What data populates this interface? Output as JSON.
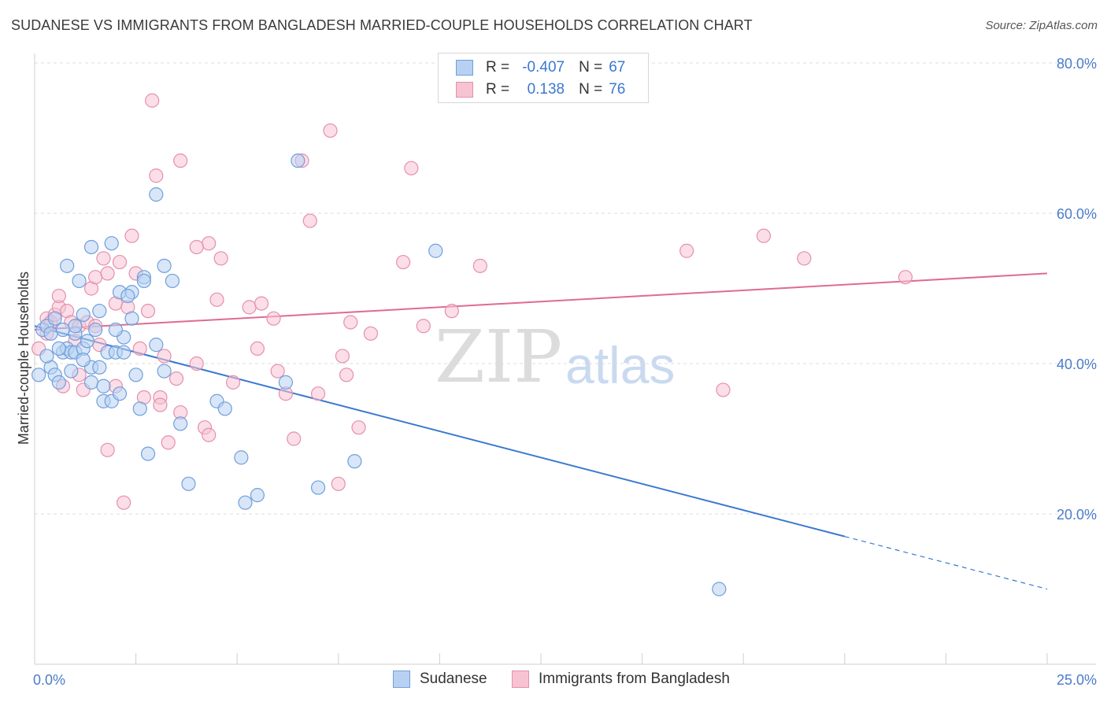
{
  "title": "SUDANESE VS IMMIGRANTS FROM BANGLADESH MARRIED-COUPLE HOUSEHOLDS CORRELATION CHART",
  "source": "Source: ZipAtlas.com",
  "watermark": {
    "zip": "ZIP",
    "atlas": "atlas"
  },
  "legend": {
    "r_label": "R =",
    "n_label": "N =",
    "series1": {
      "r": "-0.407",
      "n": "67"
    },
    "series2": {
      "r": "0.138",
      "n": "76"
    }
  },
  "bottom_legend": {
    "series1": "Sudanese",
    "series2": "Immigrants from Bangladesh"
  },
  "colors": {
    "blue_fill": "#b8d1f3",
    "blue_stroke": "#6f9fdc",
    "blue_line": "#3a78d0",
    "pink_fill": "#f7c3d3",
    "pink_stroke": "#e590ab",
    "pink_line": "#e06a93"
  },
  "chart_data": {
    "type": "scatter",
    "xlabel": "",
    "ylabel": "Married-couple Households",
    "xlim": [
      0,
      25
    ],
    "ylim": [
      0,
      80
    ],
    "x_tick_labels": {
      "min": "0.0%",
      "max": "25.0%"
    },
    "y_tick_labels": [
      "20.0%",
      "40.0%",
      "60.0%",
      "80.0%"
    ],
    "y_tick_values": [
      20,
      40,
      60,
      80
    ],
    "series": [
      {
        "name": "Sudanese",
        "r": -0.407,
        "n": 67,
        "trend": {
          "x0": 0,
          "y0": 45.0,
          "x1": 20.0,
          "y1": 17.0,
          "dash_to_x": 25,
          "dash_to_y": 10.0
        },
        "points": [
          [
            0.1,
            38.5
          ],
          [
            0.2,
            44.5
          ],
          [
            0.3,
            45.0
          ],
          [
            0.4,
            44.0
          ],
          [
            0.4,
            39.5
          ],
          [
            0.5,
            38.5
          ],
          [
            0.5,
            46.0
          ],
          [
            0.6,
            37.5
          ],
          [
            0.7,
            44.5
          ],
          [
            0.7,
            41.5
          ],
          [
            0.8,
            42.0
          ],
          [
            0.8,
            53.0
          ],
          [
            0.9,
            41.5
          ],
          [
            0.9,
            39.0
          ],
          [
            1.0,
            44.0
          ],
          [
            1.0,
            41.5
          ],
          [
            1.1,
            51.0
          ],
          [
            1.2,
            46.5
          ],
          [
            1.2,
            42.0
          ],
          [
            1.3,
            43.0
          ],
          [
            1.4,
            39.5
          ],
          [
            1.4,
            37.5
          ],
          [
            1.5,
            44.5
          ],
          [
            1.6,
            39.5
          ],
          [
            1.6,
            47.0
          ],
          [
            1.7,
            35.0
          ],
          [
            1.8,
            41.5
          ],
          [
            1.9,
            35.0
          ],
          [
            1.9,
            56.0
          ],
          [
            2.0,
            41.5
          ],
          [
            2.1,
            36.0
          ],
          [
            2.1,
            49.5
          ],
          [
            2.2,
            43.5
          ],
          [
            2.2,
            41.5
          ],
          [
            2.4,
            49.5
          ],
          [
            2.4,
            46.0
          ],
          [
            2.5,
            38.5
          ],
          [
            2.6,
            34.0
          ],
          [
            2.7,
            51.5
          ],
          [
            2.7,
            51.0
          ],
          [
            2.8,
            28.0
          ],
          [
            3.0,
            42.5
          ],
          [
            3.0,
            62.5
          ],
          [
            3.2,
            53.0
          ],
          [
            3.2,
            39.0
          ],
          [
            3.4,
            51.0
          ],
          [
            3.6,
            32.0
          ],
          [
            3.8,
            24.0
          ],
          [
            4.5,
            35.0
          ],
          [
            4.7,
            34.0
          ],
          [
            5.1,
            27.5
          ],
          [
            5.2,
            21.5
          ],
          [
            5.5,
            22.5
          ],
          [
            6.2,
            37.5
          ],
          [
            6.5,
            67.0
          ],
          [
            7.0,
            23.5
          ],
          [
            7.9,
            27.0
          ],
          [
            9.9,
            55.0
          ],
          [
            16.9,
            10.0
          ],
          [
            1.4,
            55.5
          ],
          [
            1.0,
            45.0
          ],
          [
            1.7,
            37.0
          ],
          [
            0.6,
            42.0
          ],
          [
            2.3,
            49.0
          ],
          [
            0.3,
            41.0
          ],
          [
            1.2,
            40.5
          ],
          [
            2.0,
            44.5
          ]
        ]
      },
      {
        "name": "Immigrants from Bangladesh",
        "r": 0.138,
        "n": 76,
        "trend": {
          "x0": 0,
          "y0": 44.5,
          "x1": 25,
          "y1": 52.0
        },
        "points": [
          [
            0.1,
            42.0
          ],
          [
            0.3,
            44.0
          ],
          [
            0.3,
            46.0
          ],
          [
            0.4,
            45.5
          ],
          [
            0.5,
            46.5
          ],
          [
            0.6,
            47.5
          ],
          [
            0.6,
            49.0
          ],
          [
            0.7,
            37.0
          ],
          [
            0.8,
            47.0
          ],
          [
            0.9,
            45.5
          ],
          [
            1.0,
            43.0
          ],
          [
            1.1,
            45.0
          ],
          [
            1.2,
            36.5
          ],
          [
            1.3,
            45.5
          ],
          [
            1.4,
            50.0
          ],
          [
            1.5,
            45.0
          ],
          [
            1.5,
            51.5
          ],
          [
            1.6,
            42.5
          ],
          [
            1.7,
            54.0
          ],
          [
            1.8,
            52.0
          ],
          [
            1.8,
            28.5
          ],
          [
            2.0,
            48.0
          ],
          [
            2.0,
            37.0
          ],
          [
            2.1,
            53.5
          ],
          [
            2.2,
            21.5
          ],
          [
            2.3,
            47.5
          ],
          [
            2.4,
            57.0
          ],
          [
            2.5,
            52.0
          ],
          [
            2.6,
            42.0
          ],
          [
            2.7,
            35.5
          ],
          [
            2.8,
            47.0
          ],
          [
            2.9,
            75.0
          ],
          [
            3.0,
            65.0
          ],
          [
            3.1,
            35.5
          ],
          [
            3.1,
            34.5
          ],
          [
            3.2,
            41.0
          ],
          [
            3.3,
            29.5
          ],
          [
            3.5,
            38.0
          ],
          [
            3.6,
            67.0
          ],
          [
            3.6,
            33.5
          ],
          [
            4.0,
            40.0
          ],
          [
            4.2,
            31.5
          ],
          [
            4.3,
            56.0
          ],
          [
            4.3,
            30.5
          ],
          [
            4.5,
            48.5
          ],
          [
            4.6,
            54.0
          ],
          [
            4.9,
            37.5
          ],
          [
            5.3,
            47.5
          ],
          [
            5.5,
            42.0
          ],
          [
            5.6,
            48.0
          ],
          [
            5.9,
            46.0
          ],
          [
            6.0,
            39.0
          ],
          [
            6.2,
            36.0
          ],
          [
            6.4,
            30.0
          ],
          [
            6.6,
            67.0
          ],
          [
            6.8,
            59.0
          ],
          [
            7.0,
            36.0
          ],
          [
            7.3,
            71.0
          ],
          [
            7.5,
            24.0
          ],
          [
            7.6,
            41.0
          ],
          [
            7.7,
            38.5
          ],
          [
            7.8,
            45.5
          ],
          [
            8.0,
            31.5
          ],
          [
            8.3,
            44.0
          ],
          [
            9.1,
            53.5
          ],
          [
            9.3,
            66.0
          ],
          [
            9.6,
            45.0
          ],
          [
            10.3,
            47.0
          ],
          [
            11.0,
            53.0
          ],
          [
            16.1,
            55.0
          ],
          [
            17.0,
            36.5
          ],
          [
            18.0,
            57.0
          ],
          [
            19.0,
            54.0
          ],
          [
            21.5,
            51.5
          ],
          [
            4.0,
            55.5
          ],
          [
            1.1,
            38.5
          ]
        ]
      }
    ]
  }
}
